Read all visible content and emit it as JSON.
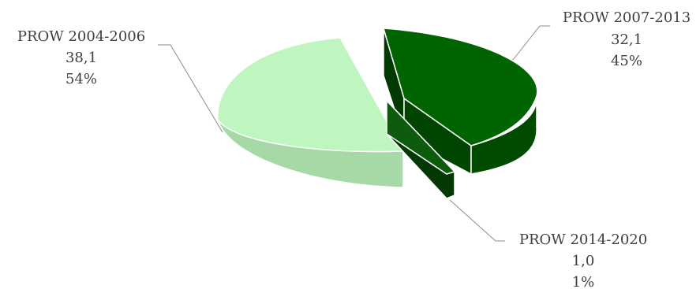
{
  "chart_data": {
    "type": "pie",
    "style": "3d-exploded",
    "title": "",
    "slices": [
      {
        "name": "PROW 2004-2006",
        "value": 38.1,
        "value_label": "38,1",
        "percent": 54,
        "percent_label": "54%",
        "color": "#bff5bf",
        "side_color": "#a9dca9"
      },
      {
        "name": "PROW 2007-2013",
        "value": 32.1,
        "value_label": "32,1",
        "percent": 45,
        "percent_label": "45%",
        "color": "#006400",
        "side_color": "#004a00"
      },
      {
        "name": "PROW 2014-2020",
        "value": 1.0,
        "value_label": "1,0",
        "percent": 1,
        "percent_label": "1%",
        "color": "#0d5c0d",
        "side_color": "#053505"
      }
    ]
  }
}
